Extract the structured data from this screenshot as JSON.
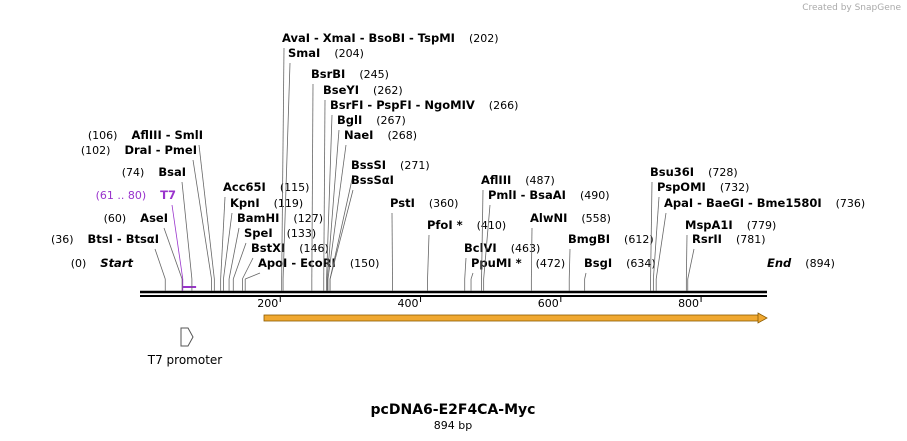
{
  "header": {
    "credit": "Created by SnapGene"
  },
  "map": {
    "title": "pcDNA6-E2F4CA-Myc",
    "length": {
      "value": 894,
      "label": "894 bp"
    },
    "ruler": [
      200,
      400,
      600,
      800
    ],
    "sites": [
      {
        "name": "Start",
        "position": {
          "value": 0,
          "label": "(0)"
        }
      },
      {
        "name": "BtsI - BtsαI",
        "position": {
          "value": 36,
          "label": "(36)"
        }
      },
      {
        "name": "AseI",
        "position": {
          "value": 60,
          "label": "(60)"
        }
      },
      {
        "name": "T7",
        "position": {
          "start": 61,
          "end": 80,
          "label": "(61 .. 80)"
        }
      },
      {
        "name": "BsaI",
        "position": {
          "value": 74,
          "label": "(74)"
        }
      },
      {
        "name": "DraI - PmeI",
        "position": {
          "value": 102,
          "label": "(102)"
        }
      },
      {
        "name": "AflIII - SmlI",
        "position": {
          "value": 106,
          "label": "(106)"
        }
      },
      {
        "name": "Acc65I",
        "position": {
          "value": 115,
          "label": "(115)"
        }
      },
      {
        "name": "KpnI",
        "position": {
          "value": 119,
          "label": "(119)"
        }
      },
      {
        "name": "BamHI",
        "position": {
          "value": 127,
          "label": "(127)"
        }
      },
      {
        "name": "SpeI",
        "position": {
          "value": 133,
          "label": "(133)"
        }
      },
      {
        "name": "BstXI",
        "position": {
          "value": 146,
          "label": "(146)"
        }
      },
      {
        "name": "ApoI - EcoRI",
        "position": {
          "value": 150,
          "label": "(150)"
        }
      },
      {
        "name": "AvaI - XmaI - BsoBI - TspMI",
        "position": {
          "value": 202,
          "label": "(202)"
        }
      },
      {
        "name": "SmaI",
        "position": {
          "value": 204,
          "label": "(204)"
        }
      },
      {
        "name": "BsrBI",
        "position": {
          "value": 245,
          "label": "(245)"
        }
      },
      {
        "name": "BseYI",
        "position": {
          "value": 262,
          "label": "(262)"
        }
      },
      {
        "name": "BsrFI - PspFI - NgoMIV",
        "position": {
          "value": 266,
          "label": "(266)"
        }
      },
      {
        "name": "BglI",
        "position": {
          "value": 267,
          "label": "(267)"
        }
      },
      {
        "name": "NaeI",
        "position": {
          "value": 268,
          "label": "(268)"
        }
      },
      {
        "name": "BssSI",
        "position": {
          "value": 271,
          "label": "(271)"
        }
      },
      {
        "name": "BssSαI",
        "position": {
          "value": 271
        }
      },
      {
        "name": "PstI",
        "position": {
          "value": 360,
          "label": "(360)"
        }
      },
      {
        "name": "PfoI *",
        "position": {
          "value": 410,
          "label": "(410)"
        }
      },
      {
        "name": "BclVI",
        "position": {
          "value": 463,
          "label": "(463)"
        }
      },
      {
        "name": "PpuMI *",
        "position": {
          "value": 472,
          "label": "(472)"
        }
      },
      {
        "name": "AflIII",
        "position": {
          "value": 487,
          "label": "(487)"
        }
      },
      {
        "name": "PmlI - BsaAI",
        "position": {
          "value": 490,
          "label": "(490)"
        }
      },
      {
        "name": "AlwNI",
        "position": {
          "value": 558,
          "label": "(558)"
        }
      },
      {
        "name": "BmgBI",
        "position": {
          "value": 612,
          "label": "(612)"
        }
      },
      {
        "name": "BsgI",
        "position": {
          "value": 634,
          "label": "(634)"
        }
      },
      {
        "name": "Bsu36I",
        "position": {
          "value": 728,
          "label": "(728)"
        }
      },
      {
        "name": "PspOMI",
        "position": {
          "value": 732,
          "label": "(732)"
        }
      },
      {
        "name": "ApaI - BaeGI - Bme1580I",
        "position": {
          "value": 736,
          "label": "(736)"
        }
      },
      {
        "name": "MspA1I",
        "position": {
          "value": 779,
          "label": "(779)"
        }
      },
      {
        "name": "RsrII",
        "position": {
          "value": 781,
          "label": "(781)"
        }
      },
      {
        "name": "End",
        "position": {
          "value": 894,
          "label": "(894)"
        }
      }
    ],
    "features": [
      {
        "name": "T7 promoter"
      }
    ]
  }
}
